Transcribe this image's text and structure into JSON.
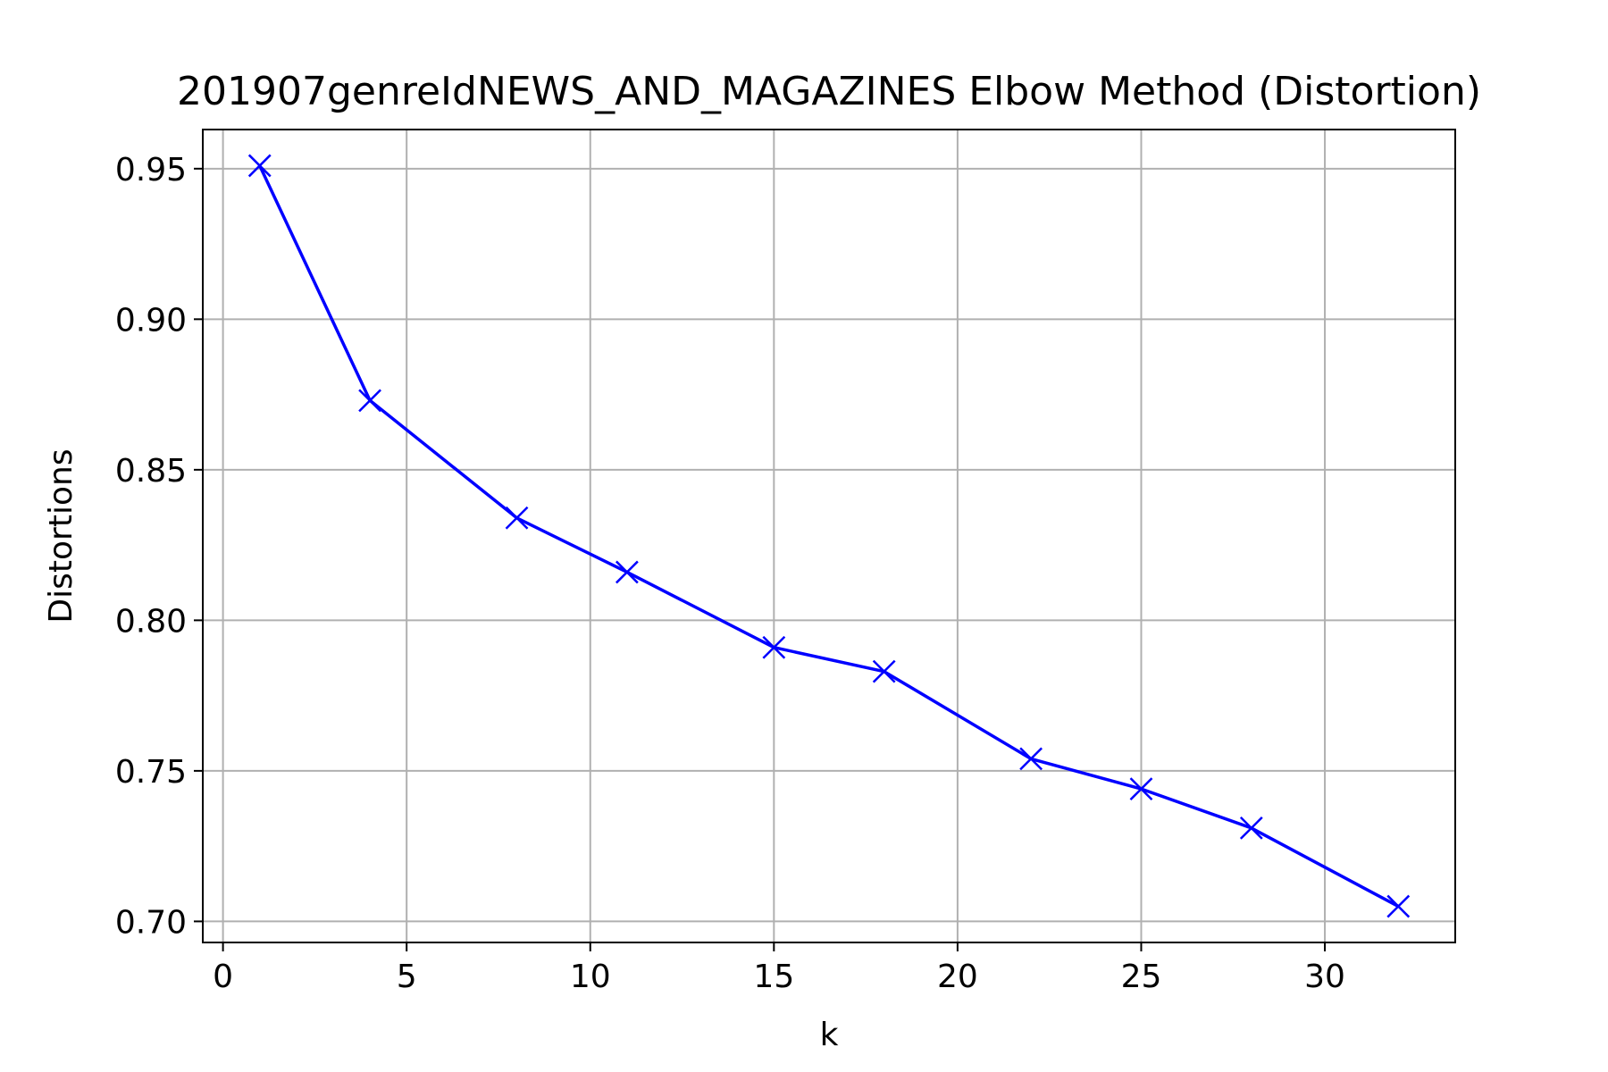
{
  "chart_data": {
    "type": "line",
    "title": "201907genreIdNEWS_AND_MAGAZINES Elbow Method (Distortion)",
    "xlabel": "k",
    "ylabel": "Distortions",
    "xlim": [
      -0.55,
      33.55
    ],
    "ylim": [
      0.693,
      0.963
    ],
    "x_ticks": [
      0,
      5,
      10,
      15,
      20,
      25,
      30
    ],
    "y_ticks": [
      0.7,
      0.75,
      0.8,
      0.85,
      0.9,
      0.95
    ],
    "x_tick_labels": [
      "0",
      "5",
      "10",
      "15",
      "20",
      "25",
      "30"
    ],
    "y_tick_labels": [
      "0.70",
      "0.75",
      "0.80",
      "0.85",
      "0.90",
      "0.95"
    ],
    "grid": true,
    "marker": "x",
    "series": [
      {
        "color": "#0000ff",
        "x": [
          1,
          4,
          8,
          11,
          15,
          18,
          22,
          25,
          28,
          32
        ],
        "y": [
          0.951,
          0.873,
          0.834,
          0.816,
          0.791,
          0.783,
          0.754,
          0.744,
          0.731,
          0.705
        ]
      }
    ]
  }
}
